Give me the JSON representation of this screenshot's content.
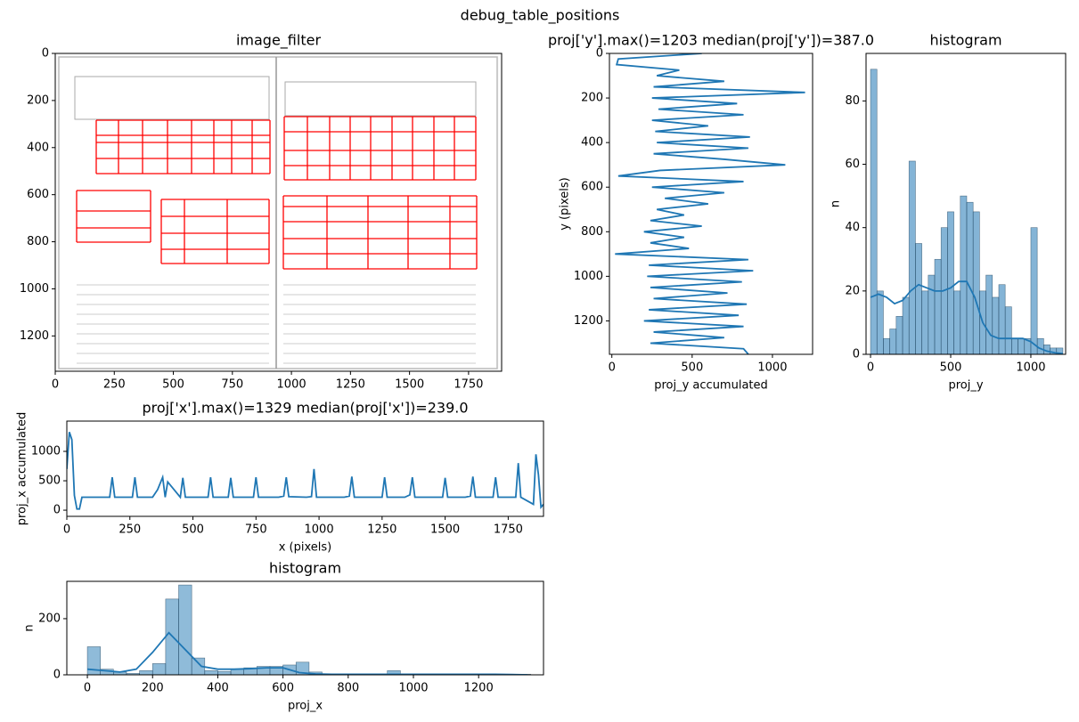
{
  "title": "debug_table_positions",
  "chart_data": [
    {
      "type": "image",
      "title": "image_filter",
      "xlim": [
        0,
        1890
      ],
      "ylim": [
        1350,
        0
      ],
      "xticks": [
        0,
        250,
        500,
        750,
        1000,
        1250,
        1500,
        1750
      ],
      "yticks": [
        0,
        200,
        400,
        600,
        800,
        1000,
        1200
      ]
    },
    {
      "type": "line",
      "title": "proj['y'].max()=1203 median(proj['y'])=387.0",
      "xlabel": "proj_y accumulated",
      "ylabel": "y (pixels)",
      "color": "#1f77b4",
      "y": [
        0,
        25,
        50,
        75,
        100,
        125,
        150,
        175,
        200,
        225,
        250,
        275,
        300,
        325,
        350,
        375,
        400,
        425,
        450,
        475,
        500,
        525,
        550,
        575,
        600,
        625,
        650,
        675,
        700,
        725,
        750,
        775,
        800,
        825,
        850,
        875,
        900,
        925,
        950,
        975,
        1000,
        1025,
        1050,
        1075,
        1100,
        1125,
        1150,
        1175,
        1200,
        1225,
        1250,
        1275,
        1300,
        1325,
        1350
      ],
      "values": [
        560,
        40,
        30,
        420,
        280,
        700,
        260,
        1203,
        250,
        780,
        290,
        820,
        250,
        600,
        270,
        860,
        280,
        850,
        260,
        700,
        1080,
        300,
        40,
        820,
        250,
        700,
        330,
        600,
        280,
        450,
        240,
        560,
        200,
        450,
        240,
        480,
        20,
        850,
        230,
        880,
        220,
        810,
        240,
        720,
        260,
        840,
        230,
        790,
        200,
        820,
        260,
        700,
        240,
        820,
        850
      ],
      "xlim": [
        -15,
        1250
      ],
      "ylim": [
        1350,
        0
      ],
      "xticks": [
        0,
        500,
        1000
      ],
      "yticks": [
        0,
        200,
        400,
        600,
        800,
        1000,
        1200
      ]
    },
    {
      "type": "histogram",
      "title": "histogram",
      "xlabel": "proj_y",
      "ylabel": "n",
      "color": "#1f77b4",
      "alpha": 0.55,
      "bins": [
        0,
        40,
        80,
        120,
        160,
        200,
        240,
        280,
        320,
        360,
        400,
        440,
        480,
        520,
        560,
        600,
        640,
        680,
        720,
        760,
        800,
        840,
        880,
        920,
        960,
        1000,
        1040,
        1080,
        1120,
        1160,
        1200
      ],
      "counts": [
        90,
        20,
        5,
        8,
        12,
        18,
        61,
        35,
        20,
        25,
        30,
        40,
        45,
        20,
        50,
        48,
        45,
        20,
        25,
        18,
        22,
        15,
        5,
        5,
        5,
        40,
        5,
        3,
        2,
        2
      ],
      "kde": {
        "x": [
          0,
          50,
          100,
          150,
          200,
          250,
          300,
          350,
          400,
          450,
          500,
          550,
          600,
          650,
          700,
          750,
          800,
          850,
          900,
          950,
          1000,
          1050,
          1100,
          1150,
          1200
        ],
        "values": [
          18,
          19,
          18,
          16,
          17,
          20,
          22,
          21,
          20,
          20,
          21,
          23,
          23,
          18,
          10,
          6,
          5,
          5,
          5,
          5,
          4,
          2,
          1,
          0.5,
          0.2
        ]
      },
      "xlim": [
        -28,
        1217
      ],
      "ylim": [
        0,
        95
      ],
      "xticks": [
        0,
        500,
        1000
      ],
      "yticks": [
        0,
        20,
        40,
        60,
        80
      ]
    },
    {
      "type": "line",
      "title": "proj['x'].max()=1329 median(proj['x'])=239.0",
      "xlabel": "x (pixels)",
      "ylabel": "proj_x accumulated",
      "color": "#1f77b4",
      "x": [
        0,
        10,
        20,
        30,
        40,
        50,
        60,
        170,
        180,
        190,
        260,
        270,
        280,
        340,
        360,
        380,
        390,
        400,
        450,
        460,
        470,
        560,
        570,
        580,
        600,
        640,
        650,
        660,
        720,
        740,
        750,
        760,
        840,
        860,
        870,
        880,
        950,
        970,
        980,
        990,
        1100,
        1120,
        1130,
        1140,
        1250,
        1260,
        1270,
        1340,
        1360,
        1370,
        1380,
        1490,
        1500,
        1510,
        1580,
        1600,
        1610,
        1620,
        1690,
        1700,
        1710,
        1780,
        1790,
        1800,
        1850,
        1860,
        1870,
        1880,
        1890
      ],
      "values": [
        700,
        1329,
        1200,
        250,
        20,
        20,
        220,
        220,
        560,
        220,
        220,
        560,
        220,
        220,
        350,
        560,
        220,
        480,
        220,
        550,
        220,
        220,
        560,
        220,
        220,
        220,
        550,
        220,
        220,
        220,
        560,
        220,
        220,
        240,
        560,
        230,
        220,
        230,
        700,
        220,
        220,
        240,
        570,
        220,
        220,
        560,
        220,
        220,
        260,
        560,
        220,
        220,
        550,
        220,
        220,
        240,
        570,
        220,
        220,
        560,
        220,
        220,
        800,
        220,
        100,
        950,
        600,
        50,
        100
      ],
      "xlim": [
        0,
        1890
      ],
      "ylim": [
        -105,
        1515
      ],
      "xticks": [
        0,
        250,
        500,
        750,
        1000,
        1250,
        1500,
        1750
      ],
      "yticks": [
        0,
        500,
        1000
      ]
    },
    {
      "type": "histogram",
      "title": "histogram",
      "xlabel": "proj_x",
      "ylabel": "n",
      "color": "#1f77b4",
      "alpha": 0.5,
      "bins": [
        0,
        40,
        80,
        120,
        160,
        200,
        240,
        280,
        320,
        360,
        400,
        440,
        480,
        520,
        560,
        600,
        640,
        680,
        720,
        760,
        800,
        840,
        880,
        920,
        960,
        1000,
        1040,
        1080,
        1120,
        1160,
        1200,
        1240,
        1280,
        1320,
        1360
      ],
      "counts": [
        100,
        20,
        10,
        5,
        15,
        40,
        270,
        320,
        60,
        15,
        12,
        20,
        25,
        30,
        30,
        35,
        45,
        10,
        3,
        2,
        2,
        3,
        3,
        15,
        2,
        2,
        2,
        2,
        2,
        2,
        2,
        2,
        2,
        2
      ],
      "kde": {
        "x": [
          0,
          50,
          100,
          150,
          200,
          250,
          300,
          350,
          400,
          450,
          500,
          550,
          600,
          650,
          700,
          750,
          800,
          850,
          900,
          950,
          1000,
          1050,
          1100,
          1150,
          1200,
          1250,
          1300,
          1350
        ],
        "values": [
          20,
          15,
          10,
          20,
          80,
          150,
          90,
          30,
          20,
          20,
          22,
          25,
          25,
          8,
          3,
          2,
          2,
          2,
          2,
          2,
          2,
          2,
          2,
          2,
          2,
          2,
          1,
          0
        ]
      },
      "xlim": [
        -63,
        1399
      ],
      "ylim": [
        0,
        333
      ],
      "xticks": [
        0,
        200,
        400,
        600,
        800,
        1000,
        1200
      ],
      "yticks": [
        0,
        200
      ]
    }
  ]
}
